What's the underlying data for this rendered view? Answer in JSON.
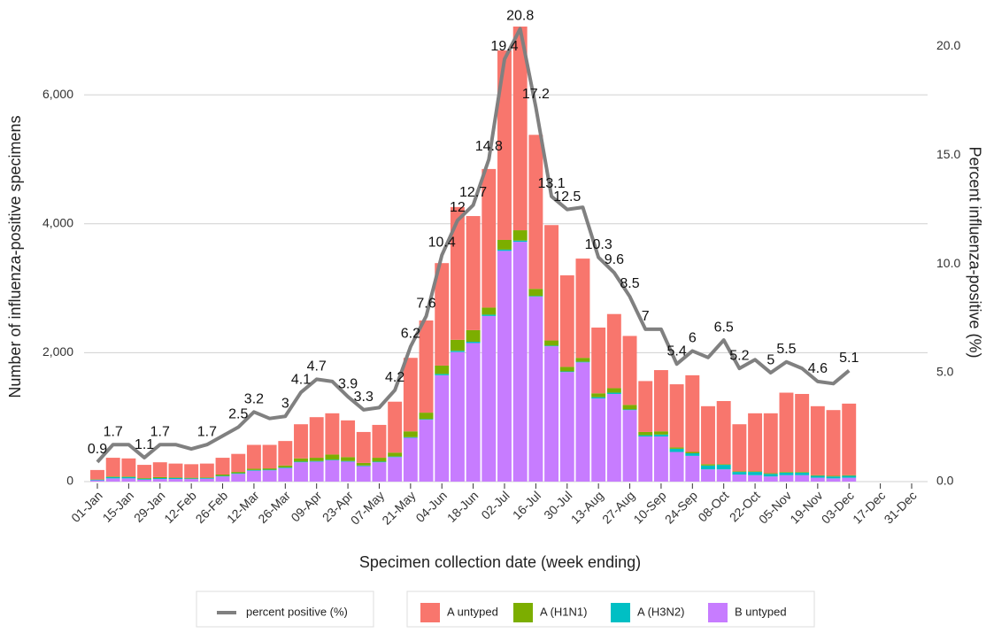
{
  "chart_data": {
    "type": "bar",
    "stacked": true,
    "x_label": "Specimen collection date (week ending)",
    "y_label": "Number of influenza-positive specimens",
    "y2_label": "Percent influenza-positive (%)",
    "categories": [
      "01-Jan",
      null,
      "15-Jan",
      null,
      "29-Jan",
      null,
      "12-Feb",
      null,
      "26-Feb",
      null,
      "12-Mar",
      null,
      "26-Mar",
      null,
      "09-Apr",
      null,
      "23-Apr",
      null,
      "07-May",
      null,
      "21-May",
      null,
      "04-Jun",
      null,
      "18-Jun",
      null,
      "02-Jul",
      null,
      "16-Jul",
      null,
      "30-Jul",
      null,
      "13-Aug",
      null,
      "27-Aug",
      null,
      "10-Sep",
      null,
      "24-Sep",
      null,
      "08-Oct",
      null,
      "22-Oct",
      null,
      "05-Nov",
      null,
      "19-Nov",
      null,
      "03-Dec",
      null,
      "17-Dec",
      null,
      "31-Dec"
    ],
    "ylim": [
      0,
      7060
    ],
    "yticks": [
      {
        "value": 0,
        "label": "0"
      },
      {
        "value": 2000,
        "label": "2,000"
      },
      {
        "value": 4000,
        "label": "4,000"
      },
      {
        "value": 6000,
        "label": "6,000"
      }
    ],
    "y2lim": [
      0,
      20.9
    ],
    "y2ticks": [
      {
        "value": 0,
        "label": "0.0"
      },
      {
        "value": 5,
        "label": "5.0"
      },
      {
        "value": 10,
        "label": "10.0"
      },
      {
        "value": 15,
        "label": "15.0"
      },
      {
        "value": 20,
        "label": "20.0"
      }
    ],
    "grid": true,
    "series": [
      {
        "name": "B untyped",
        "color": "#C77CFF",
        "values": [
          20,
          50,
          50,
          30,
          40,
          40,
          40,
          45,
          80,
          120,
          170,
          175,
          210,
          300,
          310,
          330,
          310,
          240,
          300,
          380,
          680,
          960,
          1650,
          2010,
          2150,
          2570,
          3580,
          3720,
          2870,
          2100,
          1700,
          1850,
          1290,
          1360,
          1110,
          700,
          700,
          460,
          400,
          190,
          190,
          110,
          100,
          80,
          100,
          100,
          60,
          50,
          60,
          null,
          null,
          null,
          null
        ]
      },
      {
        "name": "A (H3N2)",
        "color": "#00BFC4",
        "values": [
          10,
          20,
          20,
          15,
          15,
          15,
          10,
          10,
          10,
          10,
          10,
          10,
          10,
          10,
          10,
          10,
          10,
          10,
          10,
          10,
          10,
          10,
          20,
          20,
          20,
          20,
          20,
          20,
          10,
          10,
          10,
          10,
          20,
          20,
          10,
          20,
          30,
          50,
          40,
          60,
          70,
          40,
          50,
          40,
          40,
          40,
          30,
          30,
          30,
          null,
          null,
          null,
          null
        ]
      },
      {
        "name": "A (H1N1)",
        "color": "#7CAE00",
        "values": [
          5,
          10,
          10,
          10,
          15,
          10,
          10,
          10,
          20,
          20,
          20,
          20,
          30,
          50,
          50,
          80,
          60,
          40,
          60,
          60,
          90,
          100,
          130,
          170,
          180,
          110,
          150,
          160,
          110,
          80,
          70,
          60,
          60,
          70,
          70,
          50,
          50,
          20,
          20,
          20,
          10,
          10,
          10,
          10,
          10,
          10,
          10,
          10,
          10,
          null,
          null,
          null,
          null
        ]
      },
      {
        "name": "A untyped",
        "color": "#F8766D",
        "values": [
          145,
          290,
          280,
          205,
          230,
          215,
          210,
          215,
          260,
          280,
          370,
          365,
          380,
          530,
          630,
          640,
          570,
          480,
          510,
          790,
          1140,
          1430,
          1590,
          2060,
          1770,
          2150,
          2940,
          3160,
          2390,
          1790,
          1420,
          1540,
          1020,
          1150,
          1070,
          790,
          950,
          980,
          1190,
          900,
          980,
          730,
          900,
          930,
          1230,
          1210,
          1070,
          1020,
          1110,
          null,
          null,
          null,
          null
        ]
      },
      {
        "name": "percent positive (%)",
        "type": "line",
        "axis": "y2",
        "color": "#808080",
        "values": [
          0.9,
          1.7,
          1.7,
          1.1,
          1.7,
          1.7,
          1.5,
          1.7,
          2.1,
          2.5,
          3.2,
          2.9,
          3,
          4.1,
          4.7,
          4.6,
          3.9,
          3.3,
          3.4,
          4.2,
          6.2,
          7.6,
          10.4,
          12,
          12.7,
          14.8,
          19.4,
          20.8,
          17.2,
          13.1,
          12.5,
          12.6,
          10.3,
          9.6,
          8.5,
          7,
          7.0,
          5.4,
          6,
          5.7,
          6.5,
          5.2,
          5.6,
          5,
          5.5,
          5.2,
          4.6,
          4.5,
          5.1,
          null,
          null,
          null,
          null
        ],
        "value_labels": [
          "0.9",
          "1.7",
          null,
          "1.1",
          "1.7",
          null,
          null,
          "1.7",
          null,
          "2.5",
          "3.2",
          null,
          "3",
          "4.1",
          "4.7",
          null,
          "3.9",
          "3.3",
          null,
          "4.2",
          "6.2",
          "7.6",
          "10.4",
          "12",
          "12.7",
          "14.8",
          "19.4",
          "20.8",
          "17.2",
          "13.1",
          "12.5",
          null,
          "10.3",
          "9.6",
          "8.5",
          "7",
          null,
          "5.4",
          "6",
          null,
          "6.5",
          "5.2",
          null,
          "5",
          "5.5",
          null,
          "4.6",
          null,
          "5.1",
          null,
          null,
          null,
          null
        ]
      }
    ],
    "legend_order": [
      "percent positive (%)",
      "A untyped",
      "A (H1N1)",
      "A (H3N2)",
      "B untyped"
    ]
  }
}
